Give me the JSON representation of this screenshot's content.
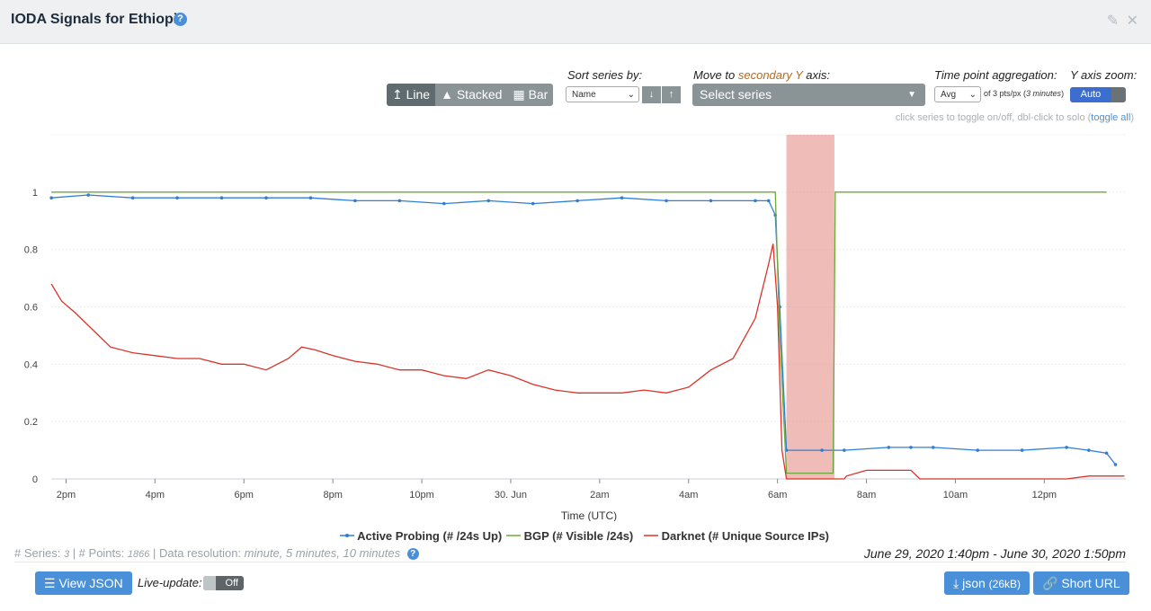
{
  "header": {
    "title": "IODA Signals for Ethiopia",
    "help_icon": "?"
  },
  "controls": {
    "view_buttons": [
      "Line",
      "Stacked",
      "Bar"
    ],
    "sort_label": "Sort series by:",
    "sort_value": "Name",
    "sort_down": "↓",
    "sort_up": "↑",
    "secondary_label_pre": "Move to ",
    "secondary_label_em": "secondary Y",
    "secondary_label_post": " axis:",
    "select_series": "Select series",
    "aggregation_label": "Time point aggregation:",
    "aggregation_value": "Avg",
    "aggregation_note_pre": "of 3 pts/px (",
    "aggregation_note_em": "3 minutes",
    "aggregation_note_post": ")",
    "zoom_label": "Y axis zoom:",
    "zoom_value": "Auto",
    "hint_text": "click series to toggle on/off, dbl-click to solo (",
    "hint_link": "toggle all",
    "hint_close": ")"
  },
  "chart_data": {
    "type": "line",
    "xlabel": "Time (UTC)",
    "ylabel": "",
    "ylim": [
      0,
      1.2
    ],
    "y_ticks": [
      "0",
      "0.2",
      "0.4",
      "0.6",
      "0.8",
      "1"
    ],
    "x_ticks": [
      "2pm",
      "4pm",
      "6pm",
      "8pm",
      "10pm",
      "30. Jun",
      "2am",
      "4am",
      "6am",
      "8am",
      "10am",
      "12pm"
    ],
    "x_tick_hours": [
      14,
      16,
      18,
      20,
      22,
      24,
      26,
      28,
      30,
      32,
      34,
      36
    ],
    "x_range_hours": [
      13.667,
      37.833
    ],
    "outage_band_hours": [
      30.2,
      31.28
    ],
    "series": [
      {
        "name": "Active Probing (# /24s Up)",
        "color": "#2f7ed8",
        "x": [
          13.67,
          14.5,
          15.5,
          16.5,
          17.5,
          18.5,
          19.5,
          20.5,
          21.5,
          22.5,
          23.5,
          24.5,
          25.5,
          26.5,
          27.5,
          28.5,
          29.5,
          29.8,
          29.95,
          30.05,
          30.2,
          31.0,
          31.5,
          32.5,
          33.0,
          33.5,
          34.5,
          35.5,
          36.5,
          37.0,
          37.4,
          37.6
        ],
        "values": [
          0.98,
          0.99,
          0.98,
          0.98,
          0.98,
          0.98,
          0.98,
          0.97,
          0.97,
          0.96,
          0.97,
          0.96,
          0.97,
          0.98,
          0.97,
          0.97,
          0.97,
          0.97,
          0.92,
          0.6,
          0.1,
          0.1,
          0.1,
          0.11,
          0.11,
          0.11,
          0.1,
          0.1,
          0.11,
          0.1,
          0.09,
          0.05
        ]
      },
      {
        "name": "BGP (# Visible /24s)",
        "color": "#6aaa3a",
        "x": [
          13.67,
          29.95,
          30.05,
          30.2,
          31.25,
          31.3,
          33.0,
          35.0,
          37.4
        ],
        "values": [
          1.0,
          1.0,
          0.5,
          0.02,
          0.02,
          1.0,
          1.0,
          1.0,
          1.0
        ]
      },
      {
        "name": "Darknet (# Unique Source IPs)",
        "color": "#d9342b",
        "x": [
          13.67,
          13.9,
          14.2,
          14.6,
          15.0,
          15.5,
          16.0,
          16.5,
          17.0,
          17.5,
          18.0,
          18.5,
          19.0,
          19.3,
          19.6,
          20.0,
          20.5,
          21.0,
          21.5,
          22.0,
          22.5,
          23.0,
          23.5,
          24.0,
          24.5,
          25.0,
          25.5,
          26.0,
          26.5,
          27.0,
          27.5,
          28.0,
          28.5,
          29.0,
          29.5,
          29.8,
          29.9,
          30.0,
          30.1,
          30.2,
          31.5,
          31.55,
          32.0,
          33.0,
          33.2,
          34.0,
          35.0,
          36.0,
          36.5,
          37.0,
          37.4,
          37.8
        ],
        "values": [
          0.68,
          0.62,
          0.58,
          0.52,
          0.46,
          0.44,
          0.43,
          0.42,
          0.42,
          0.4,
          0.4,
          0.38,
          0.42,
          0.46,
          0.45,
          0.43,
          0.41,
          0.4,
          0.38,
          0.38,
          0.36,
          0.35,
          0.38,
          0.36,
          0.33,
          0.31,
          0.3,
          0.3,
          0.3,
          0.31,
          0.3,
          0.32,
          0.38,
          0.42,
          0.56,
          0.75,
          0.82,
          0.6,
          0.1,
          0.0,
          0.0,
          0.01,
          0.03,
          0.03,
          0.0,
          0.0,
          0.0,
          0.0,
          0.0,
          0.01,
          0.01,
          0.01
        ]
      }
    ]
  },
  "footer": {
    "meta_series_label": "# Series:",
    "meta_series_count": "3",
    "meta_points_label": "| # Points:",
    "meta_points_count": "1866",
    "meta_resolution_label": "| Data resolution:",
    "meta_resolution_value": "minute, 5 minutes, 10 minutes",
    "date_range": "June 29, 2020 1:40pm - June 30, 2020 1:50pm",
    "view_json": "View JSON",
    "live_update_label": "Live-update:",
    "live_update_value": "Off",
    "json_button": "json",
    "json_size": "(26kB)",
    "short_url": "Short URL"
  }
}
